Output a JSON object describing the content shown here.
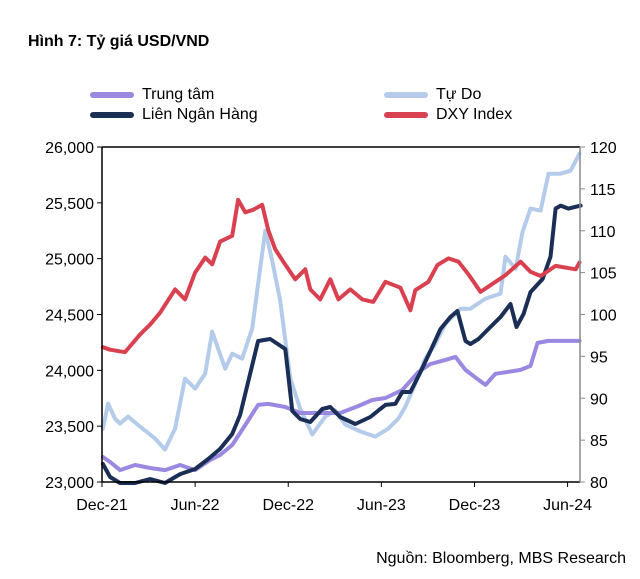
{
  "figure": {
    "title": "Hình 7: Tỷ giá USD/VND",
    "source": "Nguồn: Bloomberg, MBS Research"
  },
  "chart_data": {
    "type": "line",
    "title": "Hình 7: Tỷ giá USD/VND",
    "xlabel": "",
    "ylabel": "",
    "x_unit": "months since Dec-21",
    "x_ticks": [
      {
        "label": "Dec-21",
        "x": 0
      },
      {
        "label": "Jun-22",
        "x": 6
      },
      {
        "label": "Dec-22",
        "x": 12
      },
      {
        "label": "Jun-23",
        "x": 18
      },
      {
        "label": "Dec-23",
        "x": 24
      },
      {
        "label": "Jun-24",
        "x": 30
      }
    ],
    "xlim": [
      0,
      30.8
    ],
    "y_left": {
      "ylim": [
        23000,
        26000
      ],
      "ticks": [
        "23,000",
        "23,500",
        "24,000",
        "24,500",
        "25,000",
        "25,500",
        "26,000"
      ],
      "tick_values": [
        23000,
        23500,
        24000,
        24500,
        25000,
        25500,
        26000
      ]
    },
    "y_right": {
      "ylim": [
        80,
        120
      ],
      "ticks": [
        "80",
        "85",
        "90",
        "95",
        "100",
        "105",
        "110",
        "115",
        "120"
      ],
      "tick_values": [
        80,
        85,
        90,
        95,
        100,
        105,
        110,
        115,
        120
      ]
    },
    "grid": false,
    "legend": {
      "placement": "top",
      "entries": [
        "Trung tâm",
        "Tự Do",
        "Liên Ngân Hàng",
        "DXY Index"
      ]
    },
    "series": [
      {
        "name": "Trung tâm",
        "axis": "left",
        "color": "#9B88E0",
        "x": [
          0.06,
          0.52,
          1.16,
          2.13,
          3.1,
          4.06,
          5.03,
          6.0,
          6.97,
          7.61,
          8.39,
          9.23,
          10.06,
          10.71,
          11.81,
          12.77,
          14.06,
          15.35,
          16.52,
          17.42,
          18.26,
          19.35,
          20.39,
          21.16,
          22.13,
          22.77,
          23.42,
          24.26,
          24.71,
          25.35,
          26.19,
          26.97,
          27.61,
          28.06,
          28.77,
          29.87,
          30.77
        ],
        "values": [
          23224,
          23179,
          23107,
          23152,
          23125,
          23107,
          23152,
          23107,
          23197,
          23242,
          23331,
          23510,
          23690,
          23699,
          23672,
          23618,
          23618,
          23618,
          23681,
          23734,
          23752,
          23824,
          23985,
          24057,
          24093,
          24120,
          24004,
          23915,
          23870,
          23969,
          23987,
          24004,
          24040,
          24246,
          24264,
          24264,
          24264
        ]
      },
      {
        "name": "Tự Do",
        "axis": "left",
        "color": "#B4CBEA",
        "x": [
          0.06,
          0.39,
          0.84,
          1.16,
          1.68,
          2.45,
          3.42,
          4.06,
          4.71,
          5.35,
          6.0,
          6.65,
          7.1,
          7.48,
          7.94,
          8.39,
          9.03,
          9.68,
          10.19,
          10.52,
          10.97,
          11.48,
          12.13,
          12.77,
          13.55,
          14.39,
          15.03,
          15.68,
          16.65,
          17.61,
          18.45,
          19.1,
          19.55,
          20.19,
          20.84,
          21.48,
          22.13,
          23.1,
          23.74,
          24.71,
          25.68,
          26.0,
          26.65,
          27.1,
          27.61,
          28.26,
          28.77,
          29.55,
          30.19,
          30.77
        ],
        "values": [
          23478,
          23702,
          23568,
          23523,
          23586,
          23496,
          23389,
          23291,
          23478,
          23926,
          23836,
          23971,
          24347,
          24194,
          24015,
          24149,
          24105,
          24373,
          24910,
          25251,
          24982,
          24624,
          23926,
          23657,
          23425,
          23586,
          23640,
          23514,
          23452,
          23407,
          23478,
          23568,
          23675,
          23881,
          24105,
          24239,
          24418,
          24552,
          24552,
          24642,
          24687,
          25018,
          24910,
          25242,
          25448,
          25430,
          25761,
          25761,
          25788,
          25940
        ]
      },
      {
        "name": "Liên Ngân Hàng",
        "axis": "left",
        "color": "#1B2F56",
        "x": [
          0.06,
          0.52,
          1.16,
          2.13,
          3.1,
          4.06,
          5.03,
          6.0,
          6.84,
          7.61,
          8.39,
          8.9,
          10.06,
          10.84,
          11.81,
          12.26,
          12.77,
          13.42,
          14.19,
          14.71,
          15.35,
          16.32,
          17.29,
          18.26,
          18.9,
          19.35,
          19.87,
          20.52,
          21.16,
          21.81,
          22.45,
          22.9,
          23.42,
          23.74,
          24.26,
          24.9,
          25.68,
          26.32,
          26.71,
          27.16,
          27.61,
          28.39,
          28.9,
          29.23,
          29.55,
          30.06,
          30.84
        ],
        "values": [
          23161,
          23045,
          22991,
          22991,
          23027,
          22991,
          23071,
          23116,
          23206,
          23296,
          23430,
          23600,
          24263,
          24281,
          24191,
          23636,
          23564,
          23537,
          23654,
          23672,
          23582,
          23519,
          23582,
          23690,
          23699,
          23806,
          23806,
          23985,
          24173,
          24370,
          24478,
          24531,
          24263,
          24236,
          24281,
          24370,
          24478,
          24594,
          24388,
          24504,
          24701,
          24818,
          25018,
          25448,
          25475,
          25448,
          25475
        ]
      },
      {
        "name": "DXY Index",
        "axis": "right",
        "color": "#D94150",
        "x": [
          0.06,
          0.52,
          1.48,
          2.45,
          3.1,
          3.74,
          4.71,
          5.35,
          6.0,
          6.65,
          7.1,
          7.61,
          8.39,
          8.77,
          9.23,
          9.74,
          10.32,
          10.71,
          11.16,
          11.68,
          12.45,
          13.1,
          13.42,
          14.06,
          14.71,
          15.23,
          16.0,
          16.77,
          17.48,
          18.26,
          19.23,
          19.87,
          20.19,
          21.03,
          21.61,
          22.32,
          22.97,
          23.61,
          24.39,
          25.03,
          26.0,
          26.97,
          27.61,
          28.26,
          29.23,
          30.52,
          30.77
        ],
        "values": [
          96.1,
          95.8,
          95.5,
          97.6,
          98.8,
          100.2,
          103.0,
          101.8,
          105.0,
          106.8,
          106.0,
          108.7,
          109.4,
          113.7,
          112.2,
          112.5,
          113.1,
          110.1,
          107.8,
          106.3,
          104.2,
          105.4,
          103.0,
          101.8,
          104.2,
          101.8,
          103.0,
          101.8,
          101.5,
          103.9,
          103.2,
          100.5,
          102.9,
          103.9,
          105.9,
          106.7,
          106.3,
          104.8,
          102.7,
          103.5,
          104.7,
          106.3,
          105.1,
          104.6,
          105.8,
          105.4,
          106.2
        ]
      }
    ]
  }
}
